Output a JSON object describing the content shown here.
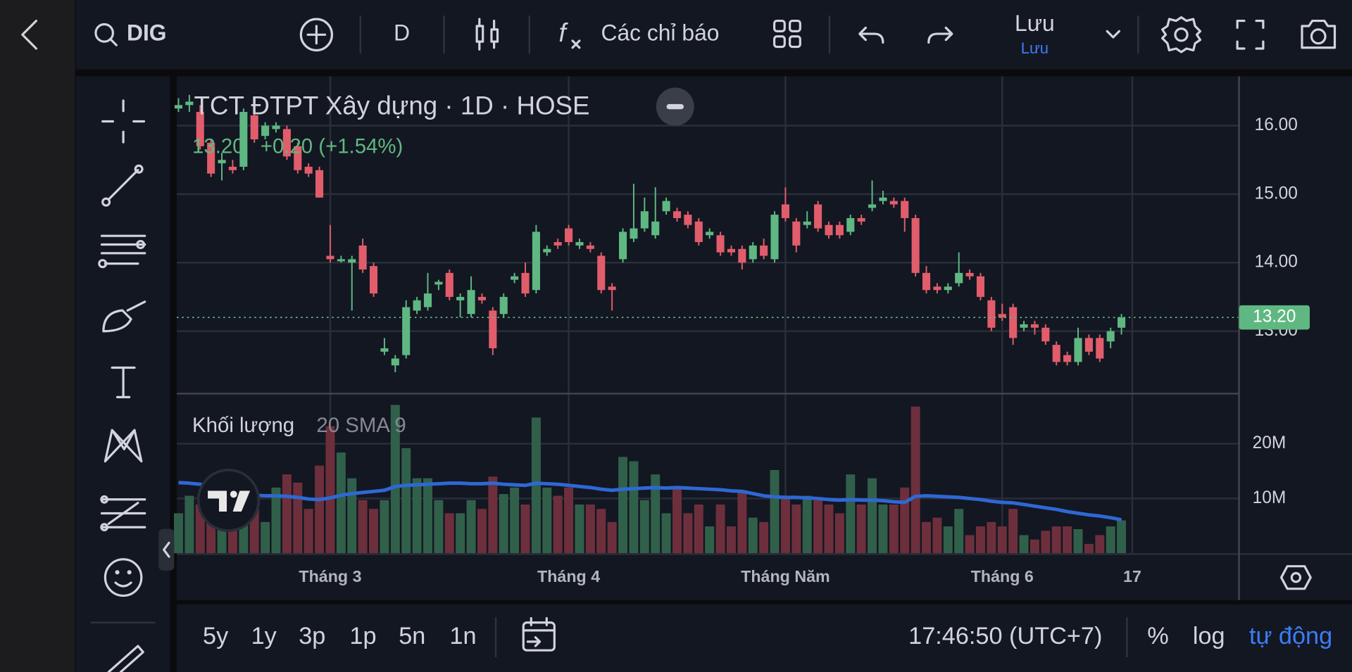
{
  "toolbar": {
    "symbol": "DIG",
    "interval": "D",
    "indicators": "Các chỉ báo",
    "save": "Lưu",
    "save_sub": "Lưu"
  },
  "chart_data": {
    "type": "candlestick",
    "title": "TCT ĐTPT Xây dựng · 1D · HOSE",
    "status_line": [
      "13.20",
      "+0.20 (+1.54%)"
    ],
    "last_price": {
      "value": 13.2,
      "label": "13.20"
    },
    "up_color": "#5fb882",
    "down_color": "#e15d6b",
    "grid": true,
    "open": [
      16.25,
      16.3,
      16.2,
      15.75,
      15.45,
      15.4,
      15.4,
      16.15,
      15.85,
      15.95,
      15.95,
      15.7,
      15.4,
      15.35,
      14.1,
      14.02,
      14.0,
      14.25,
      13.95,
      12.7,
      12.5,
      12.65,
      13.3,
      13.35,
      13.68,
      13.85,
      13.45,
      13.25,
      13.5,
      13.3,
      13.25,
      13.75,
      13.85,
      13.6,
      14.15,
      14.3,
      14.5,
      14.25,
      14.25,
      14.1,
      13.65,
      14.05,
      14.35,
      14.5,
      14.4,
      14.75,
      14.75,
      14.7,
      14.6,
      14.4,
      14.4,
      14.2,
      14.2,
      14.05,
      14.25,
      14.05,
      14.85,
      14.6,
      14.55,
      14.85,
      14.55,
      14.55,
      14.45,
      14.65,
      14.8,
      14.9,
      14.9,
      14.9,
      14.65,
      13.85,
      13.65,
      13.6,
      13.7,
      13.85,
      13.8,
      13.45,
      13.25,
      13.35,
      13.05,
      13.1,
      13.05,
      12.8,
      12.65,
      12.55,
      12.9,
      12.9,
      12.85,
      13.05
    ],
    "high": [
      16.4,
      16.45,
      16.3,
      15.8,
      15.6,
      15.5,
      16.25,
      16.2,
      16.05,
      16.05,
      16.0,
      15.75,
      15.45,
      15.4,
      14.55,
      14.1,
      14.1,
      14.35,
      14.0,
      12.9,
      12.65,
      13.45,
      13.5,
      13.85,
      13.75,
      13.9,
      13.55,
      13.8,
      13.55,
      13.35,
      13.55,
      13.85,
      14.0,
      14.55,
      14.25,
      14.35,
      14.55,
      14.35,
      14.3,
      14.15,
      13.7,
      14.5,
      15.15,
      14.95,
      15.1,
      14.95,
      14.8,
      14.75,
      14.65,
      14.5,
      14.45,
      14.25,
      14.25,
      14.3,
      14.35,
      14.75,
      15.1,
      14.65,
      14.75,
      14.9,
      14.6,
      14.6,
      14.7,
      14.7,
      15.2,
      15.05,
      14.95,
      14.95,
      14.7,
      13.95,
      13.7,
      13.7,
      14.15,
      13.9,
      13.85,
      13.5,
      13.4,
      13.4,
      13.15,
      13.15,
      13.1,
      12.85,
      12.7,
      13.05,
      12.95,
      12.95,
      13.05,
      13.25
    ],
    "low": [
      16.2,
      16.2,
      15.65,
      15.25,
      15.2,
      15.3,
      15.35,
      15.75,
      15.8,
      15.9,
      15.5,
      15.3,
      15.25,
      14.95,
      14.0,
      14.0,
      13.3,
      13.85,
      13.5,
      12.65,
      12.4,
      12.6,
      13.25,
      13.3,
      13.6,
      13.45,
      13.2,
      13.2,
      13.4,
      12.65,
      13.2,
      13.7,
      13.5,
      13.55,
      14.1,
      14.2,
      14.25,
      14.2,
      14.15,
      13.55,
      13.3,
      14.0,
      14.3,
      14.45,
      14.35,
      14.7,
      14.6,
      14.5,
      14.25,
      14.35,
      14.1,
      14.1,
      13.9,
      14.0,
      14.05,
      14.0,
      14.6,
      14.15,
      14.5,
      14.45,
      14.35,
      14.35,
      14.4,
      14.55,
      14.75,
      14.85,
      14.8,
      14.45,
      13.8,
      13.55,
      13.55,
      13.55,
      13.65,
      13.75,
      13.45,
      13.0,
      13.15,
      12.8,
      13.0,
      12.95,
      12.8,
      12.5,
      12.5,
      12.5,
      12.65,
      12.55,
      12.75,
      12.95
    ],
    "close": [
      16.3,
      16.35,
      15.7,
      15.3,
      15.5,
      15.35,
      16.2,
      15.8,
      16.0,
      16.0,
      15.55,
      15.35,
      15.3,
      14.95,
      14.05,
      14.05,
      14.05,
      13.9,
      13.55,
      12.75,
      12.6,
      13.35,
      13.45,
      13.55,
      13.72,
      13.5,
      13.5,
      13.6,
      13.45,
      12.75,
      13.5,
      13.8,
      13.55,
      14.45,
      14.2,
      14.25,
      14.3,
      14.3,
      14.2,
      13.6,
      13.6,
      14.45,
      14.5,
      14.75,
      14.6,
      14.9,
      14.65,
      14.55,
      14.3,
      14.45,
      14.15,
      14.15,
      14.0,
      14.25,
      14.1,
      14.7,
      14.65,
      14.25,
      14.6,
      14.5,
      14.4,
      14.4,
      14.65,
      14.6,
      14.85,
      14.95,
      14.85,
      14.65,
      13.85,
      13.6,
      13.6,
      13.65,
      13.85,
      13.8,
      13.5,
      13.05,
      13.2,
      12.9,
      13.1,
      13.05,
      12.85,
      12.55,
      12.55,
      12.9,
      12.7,
      12.6,
      13.0,
      13.2
    ],
    "ylim": [
      12.1,
      16.72
    ],
    "yticks": [
      {
        "value": 13,
        "label": "13.00"
      },
      {
        "value": 14,
        "label": "14.00"
      },
      {
        "value": 15,
        "label": "15.00"
      },
      {
        "value": 16,
        "label": "16.00"
      }
    ],
    "xlim": [
      -0.16,
      97.85
    ],
    "xticks": [
      {
        "value": 14,
        "label": "Tháng 3"
      },
      {
        "value": 36,
        "label": "Tháng 4"
      },
      {
        "value": 56,
        "label": "Tháng Năm"
      },
      {
        "value": 76,
        "label": "Tháng 6"
      },
      {
        "value": 88,
        "label": "17"
      }
    ],
    "volume": {
      "title": "Khối lượng",
      "params": "20 SMA 9",
      "up_color": "#31604a",
      "down_color": "#6e2f3c",
      "sma_color": "#2e68d4",
      "values": [
        7300000,
        10500000,
        8900000,
        7300000,
        6500000,
        8100000,
        12000000,
        10500000,
        5700000,
        12000000,
        14400000,
        12900000,
        8100000,
        16000000,
        23200000,
        18400000,
        13700000,
        9700000,
        8100000,
        9700000,
        27100000,
        19200000,
        13700000,
        13700000,
        9700000,
        7300000,
        7300000,
        9700000,
        8100000,
        14000000,
        10800000,
        12000000,
        8900000,
        24800000,
        12000000,
        10500000,
        12000000,
        8900000,
        8900000,
        8100000,
        5700000,
        17600000,
        16800000,
        9700000,
        14400000,
        7300000,
        12000000,
        7300000,
        8900000,
        4900000,
        8900000,
        4900000,
        11300000,
        6500000,
        5700000,
        15200000,
        10500000,
        8900000,
        10500000,
        9700000,
        8900000,
        7300000,
        14400000,
        8900000,
        13700000,
        8900000,
        8900000,
        12000000,
        26800000,
        5700000,
        6500000,
        4900000,
        8100000,
        3300000,
        4900000,
        5700000,
        4900000,
        8100000,
        3300000,
        2500000,
        4100000,
        4900000,
        4900000,
        4400000,
        1700000,
        3300000,
        4900000,
        6000000
      ],
      "sma": [
        12900000,
        12800000,
        12600000,
        12200000,
        11800000,
        11200000,
        10800000,
        10600000,
        10500000,
        10500000,
        10400000,
        10200000,
        9900000,
        9800000,
        10100000,
        10600000,
        10900000,
        11100000,
        11300000,
        11500000,
        12200000,
        12400000,
        12500000,
        12600000,
        12700000,
        12800000,
        12800000,
        12700000,
        12700000,
        12800000,
        12600000,
        12500000,
        12400000,
        12800000,
        12700000,
        12600000,
        12400000,
        12200000,
        12000000,
        11700000,
        11500000,
        11700000,
        11800000,
        11900000,
        12000000,
        11900000,
        12000000,
        11900000,
        11800000,
        11700000,
        11600000,
        11400000,
        11300000,
        10900000,
        10500000,
        10300000,
        10200000,
        10200000,
        10100000,
        10000000,
        9800000,
        9700000,
        9800000,
        9700000,
        9700000,
        9600000,
        9400000,
        9300000,
        10400000,
        10500000,
        10400000,
        10300000,
        10200000,
        10000000,
        9800000,
        9500000,
        9300000,
        9200000,
        8900000,
        8600000,
        8300000,
        8000000,
        7600000,
        7300000,
        7000000,
        6800000,
        6500000,
        6100000
      ],
      "ylim": [
        0,
        29000000
      ],
      "yticks": [
        {
          "value": 10000000,
          "label": "10M"
        },
        {
          "value": 20000000,
          "label": "20M"
        }
      ]
    }
  },
  "bottom_bar": {
    "ranges": [
      "5y",
      "1y",
      "3p",
      "1p",
      "5n",
      "1n"
    ],
    "time": "17:46:50 (UTC+7)",
    "percent": "%",
    "log": "log",
    "auto": "tự động"
  }
}
